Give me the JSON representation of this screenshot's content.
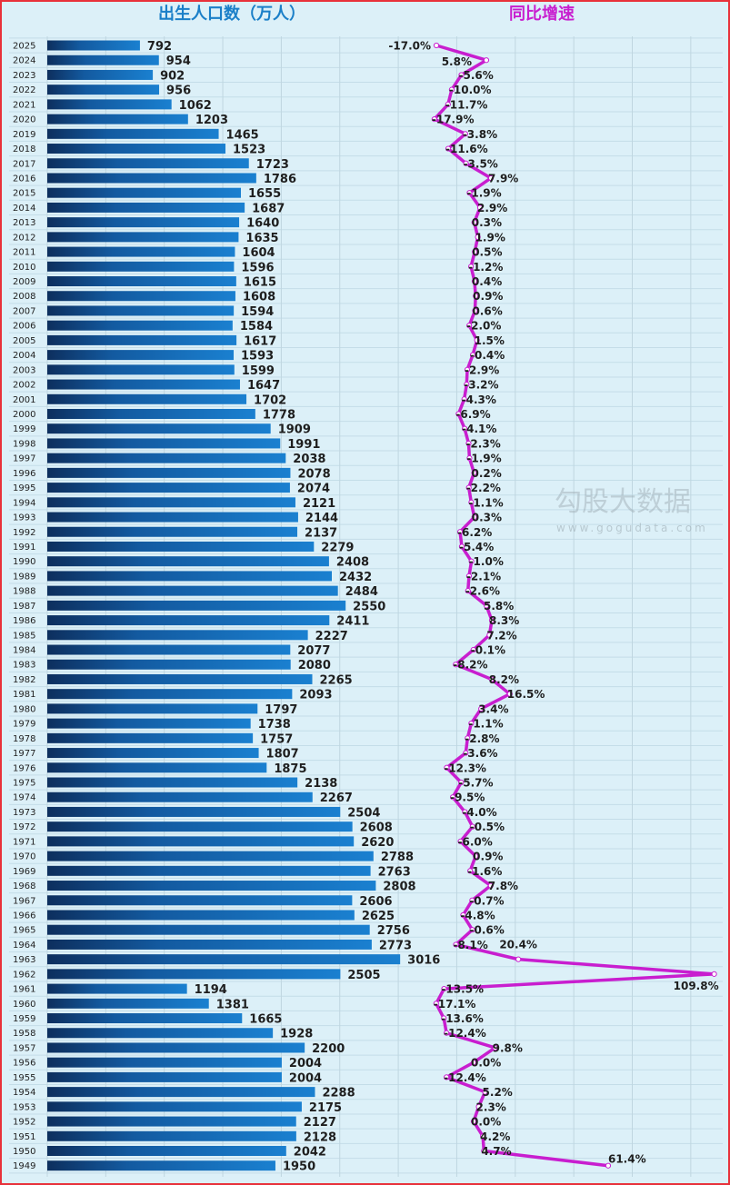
{
  "chart_data": [
    {
      "type": "bar",
      "orientation": "horizontal",
      "title": "出生人口数（万人）",
      "categories": [
        "2025",
        "2024",
        "2023",
        "2022",
        "2021",
        "2020",
        "2019",
        "2018",
        "2017",
        "2016",
        "2015",
        "2014",
        "2013",
        "2012",
        "2011",
        "2010",
        "2009",
        "2008",
        "2007",
        "2006",
        "2005",
        "2004",
        "2003",
        "2002",
        "2001",
        "2000",
        "1999",
        "1998",
        "1997",
        "1996",
        "1995",
        "1994",
        "1993",
        "1992",
        "1991",
        "1990",
        "1989",
        "1988",
        "1987",
        "1986",
        "1985",
        "1984",
        "1983",
        "1982",
        "1981",
        "1980",
        "1979",
        "1978",
        "1977",
        "1976",
        "1975",
        "1974",
        "1973",
        "1972",
        "1971",
        "1970",
        "1969",
        "1968",
        "1967",
        "1966",
        "1965",
        "1964",
        "1963",
        "1962",
        "1961",
        "1960",
        "1959",
        "1958",
        "1957",
        "1956",
        "1955",
        "1954",
        "1953",
        "1952",
        "1951",
        "1950",
        "1949"
      ],
      "values": [
        792,
        954,
        902,
        956,
        1062,
        1203,
        1465,
        1523,
        1723,
        1786,
        1655,
        1687,
        1640,
        1635,
        1604,
        1596,
        1615,
        1608,
        1594,
        1584,
        1617,
        1593,
        1599,
        1647,
        1702,
        1778,
        1909,
        1991,
        2038,
        2078,
        2074,
        2121,
        2144,
        2137,
        2279,
        2408,
        2432,
        2484,
        2550,
        2411,
        2227,
        2077,
        2080,
        2265,
        2093,
        1797,
        1738,
        1757,
        1807,
        1875,
        2138,
        2267,
        2504,
        2608,
        2620,
        2788,
        2763,
        2808,
        2606,
        2625,
        2756,
        2773,
        3016,
        2505,
        1194,
        1381,
        1665,
        1928,
        2200,
        2004,
        2004,
        2288,
        2175,
        2127,
        2128,
        2042,
        1950
      ],
      "xlim": [
        0,
        5500
      ],
      "grid": true,
      "color": "#1677c9"
    },
    {
      "type": "line",
      "title": "同比增速",
      "values": [
        -17.0,
        5.8,
        -5.6,
        -10.0,
        -11.7,
        -17.9,
        -3.8,
        -11.6,
        -3.5,
        7.9,
        -1.9,
        2.9,
        0.3,
        1.9,
        0.5,
        -1.2,
        0.4,
        0.9,
        0.6,
        -2.0,
        1.5,
        -0.4,
        -2.9,
        -3.2,
        -4.3,
        -6.9,
        -4.1,
        -2.3,
        -1.9,
        0.2,
        -2.2,
        -1.1,
        0.3,
        -6.2,
        -5.4,
        -1.0,
        -2.1,
        -2.6,
        5.8,
        8.3,
        7.2,
        -0.1,
        -8.2,
        8.2,
        16.5,
        3.4,
        -1.1,
        -2.8,
        -3.6,
        -12.3,
        -5.7,
        -9.5,
        -4.0,
        -0.5,
        -6.0,
        0.9,
        -1.6,
        7.8,
        -0.7,
        -4.8,
        -0.6,
        -8.1,
        20.4,
        109.8,
        -13.5,
        -17.1,
        -13.6,
        -12.4,
        9.8,
        0.0,
        -12.4,
        5.2,
        2.3,
        0.0,
        4.2,
        4.7,
        61.4
      ],
      "labels": [
        "-17.0%",
        "5.8%",
        "-5.6%",
        "-10.0%",
        "-11.7%",
        "-17.9%",
        "-3.8%",
        "-11.6%",
        "-3.5%",
        "7.9%",
        "-1.9%",
        "2.9%",
        "0.3%",
        "1.9%",
        "0.5%",
        "-1.2%",
        "0.4%",
        "0.9%",
        "0.6%",
        "-2.0%",
        "1.5%",
        "-0.4%",
        "-2.9%",
        "-3.2%",
        "-4.3%",
        "-6.9%",
        "-4.1%",
        "-2.3%",
        "-1.9%",
        "0.2%",
        "-2.2%",
        "-1.1%",
        "0.3%",
        "-6.2%",
        "-5.4%",
        "-1.0%",
        "-2.1%",
        "-2.6%",
        "5.8%",
        "8.3%",
        "7.2%",
        "-0.1%",
        "-8.2%",
        "8.2%",
        "16.5%",
        "3.4%",
        "-1.1%",
        "-2.8%",
        "-3.6%",
        "-12.3%",
        "-5.7%",
        "-9.5%",
        "-4.0%",
        "-0.5%",
        "-6.0%",
        "0.9%",
        "-1.6%",
        "7.8%",
        "-0.7%",
        "-4.8%",
        "-0.6%",
        "-8.1%",
        "20.4%",
        "109.8%",
        "-13.5%",
        "-17.1%",
        "-13.6%",
        "-12.4%",
        "9.8%",
        "0.0%",
        "-12.4%",
        "5.2%",
        "2.3%",
        "0.0%",
        "4.2%",
        "4.7%",
        "61.4%"
      ],
      "unit": "%",
      "color": "#c81ecf"
    }
  ],
  "titles": {
    "left": "出生人口数（万人）",
    "right": "同比增速",
    "left_color": "#1a7fc8",
    "right_color": "#c81ecf"
  },
  "watermark": {
    "brand": "勾股大数据",
    "url": "www.gogudata.com"
  }
}
